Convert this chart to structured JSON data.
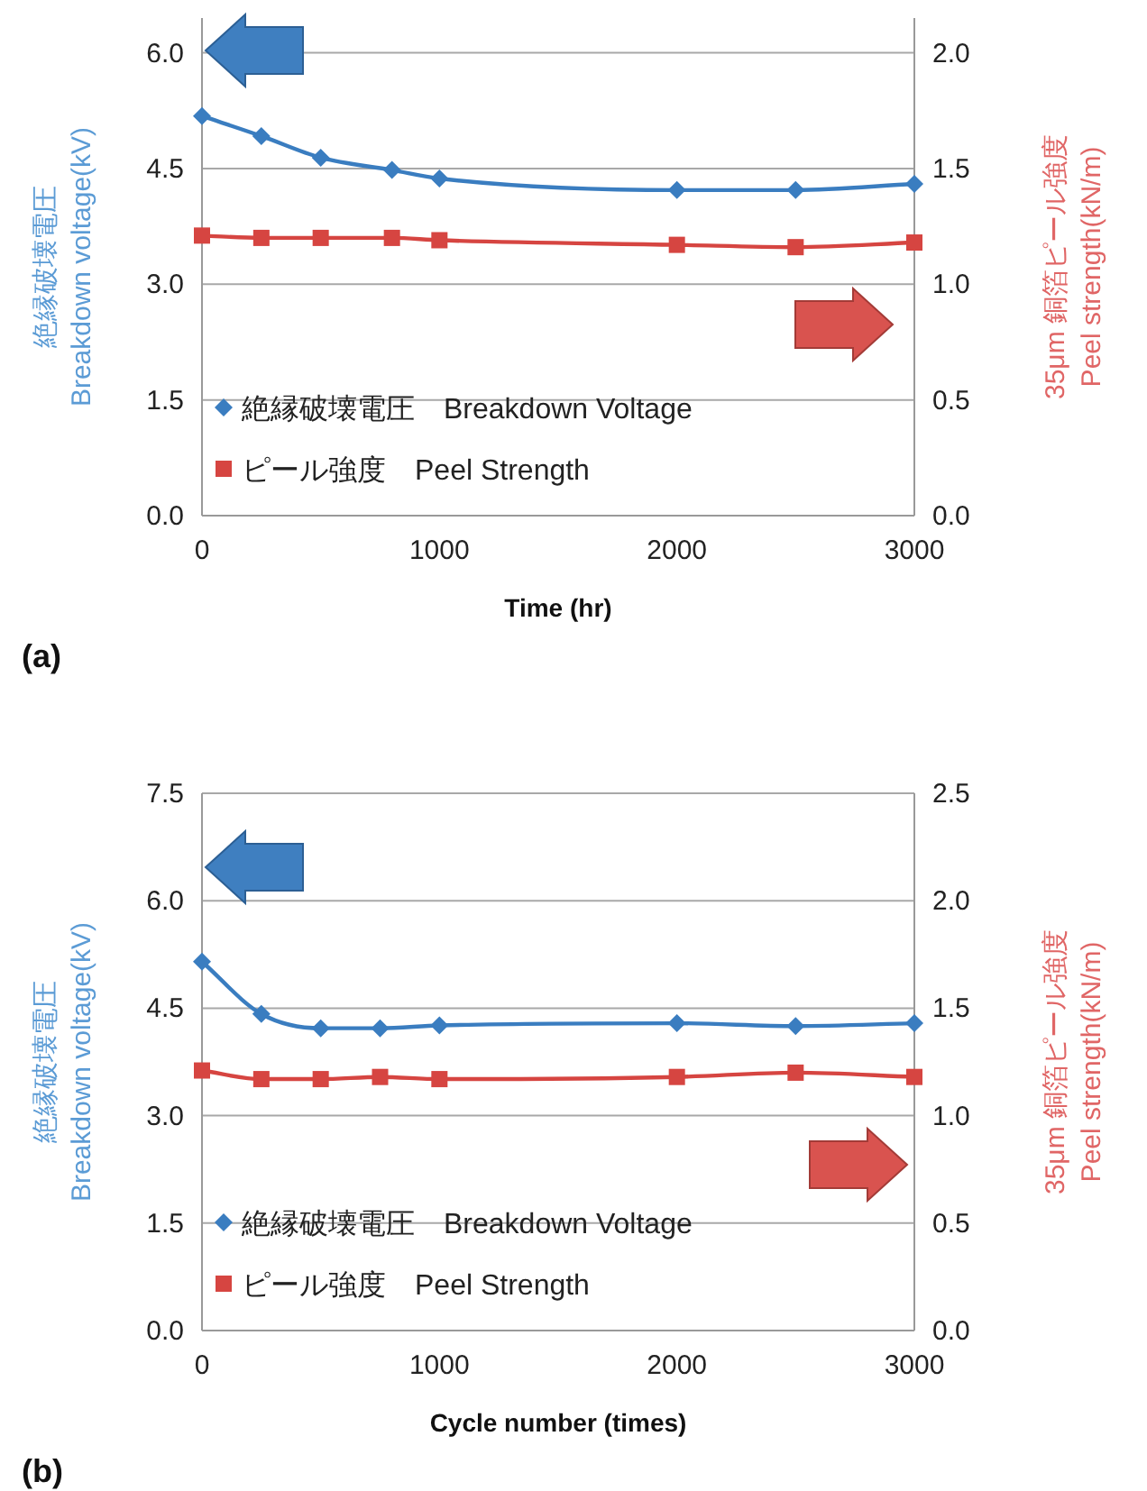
{
  "chart_data": [
    {
      "type": "line",
      "xlabel": "Time (hr)",
      "ylabel": "絶縁破壊電圧\nBreakdown voltage(kV)",
      "y2label": "35μm 銅箔ピール強度\nPeel strength(kN/m)",
      "annotations": [
        "(a)"
      ],
      "grid": "y",
      "legend": "bottom left",
      "line_style": "solid",
      "x": [
        0,
        250,
        500,
        800,
        1000,
        2000,
        2500,
        3000
      ],
      "xlim": [
        0,
        3000
      ],
      "xticks": [
        0,
        1000,
        2000,
        3000
      ],
      "ylim": [
        0,
        6.45
      ],
      "yticks": [
        {
          "value": 0,
          "label": "0.0"
        },
        1.5,
        {
          "value": 3,
          "label": "3.0"
        },
        4.5,
        {
          "value": 6,
          "label": "6.0"
        }
      ],
      "y2lim": [
        0,
        2.15
      ],
      "y2ticks": [
        {
          "value": 0,
          "label": "0.0"
        },
        0.5,
        {
          "value": 1,
          "label": "1.0"
        },
        1.5,
        {
          "value": 2,
          "label": "2.0"
        }
      ],
      "series": [
        {
          "name": "絶縁破壊電圧　Breakdown Voltage",
          "color": "#3a7dc0",
          "marker": "diamond",
          "values": [
            5.18,
            4.92,
            4.64,
            4.48,
            4.37,
            4.22,
            4.22,
            4.3
          ]
        },
        {
          "name": "ピール強度　Peel Strength",
          "color": "#d64541",
          "marker": "square",
          "axis": "y2",
          "values": [
            1.21,
            1.2,
            1.2,
            1.2,
            1.19,
            1.17,
            1.16,
            1.18
          ]
        }
      ]
    },
    {
      "type": "line",
      "xlabel": "Cycle number (times)",
      "ylabel": "絶縁破壊電圧\nBreakdown voltage(kV)",
      "y2label": "35μm 銅箔ピール強度\nPeel strength(kN/m)",
      "annotations": [
        "(b)"
      ],
      "grid": "y",
      "legend": "bottom left",
      "line_style": "solid",
      "x": [
        0,
        250,
        500,
        750,
        1000,
        2000,
        2500,
        3000
      ],
      "xlim": [
        0,
        3000
      ],
      "xticks": [
        0,
        1000,
        2000,
        3000
      ],
      "ylim": [
        0,
        7.5
      ],
      "yticks": [
        {
          "value": 0,
          "label": "0.0"
        },
        1.5,
        {
          "value": 3,
          "label": "3.0"
        },
        4.5,
        {
          "value": 6,
          "label": "6.0"
        },
        7.5
      ],
      "y2lim": [
        0,
        2.5
      ],
      "y2ticks": [
        {
          "value": 0,
          "label": "0.0"
        },
        0.5,
        {
          "value": 1,
          "label": "1.0"
        },
        1.5,
        {
          "value": 2,
          "label": "2.0"
        },
        2.5
      ],
      "series": [
        {
          "name": "絶縁破壊電圧　Breakdown Voltage",
          "color": "#3a7dc0",
          "marker": "diamond",
          "values": [
            5.15,
            4.42,
            4.22,
            4.22,
            4.26,
            4.29,
            4.25,
            4.29
          ]
        },
        {
          "name": "ピール強度　Peel Strength",
          "color": "#d64541",
          "marker": "square",
          "axis": "y2",
          "values": [
            1.21,
            1.17,
            1.17,
            1.18,
            1.17,
            1.18,
            1.2,
            1.18
          ]
        }
      ]
    }
  ]
}
